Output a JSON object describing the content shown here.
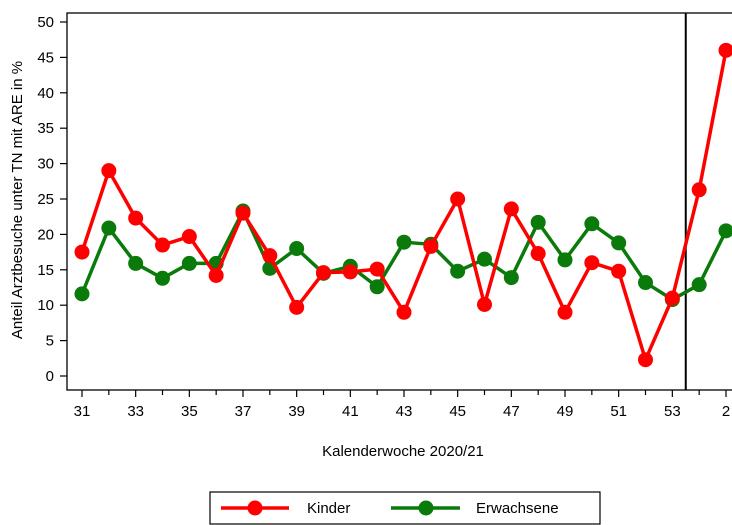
{
  "chart_data": {
    "type": "line",
    "xlabel": "Kalenderwoche 2020/21",
    "ylabel": "Anteil Arztbesuche unter TN mit ARE in %",
    "ylim": [
      0,
      50
    ],
    "y_ticks": [
      0,
      5,
      10,
      15,
      20,
      25,
      30,
      35,
      40,
      45,
      50
    ],
    "categories": [
      "31",
      "32",
      "33",
      "34",
      "35",
      "36",
      "37",
      "38",
      "39",
      "40",
      "41",
      "42",
      "43",
      "44",
      "45",
      "46",
      "47",
      "48",
      "49",
      "50",
      "51",
      "52",
      "53",
      "1",
      "2"
    ],
    "x_tick_labels": [
      "31",
      "33",
      "35",
      "37",
      "39",
      "41",
      "43",
      "45",
      "47",
      "49",
      "51",
      "53",
      "2"
    ],
    "vertical_line_after_category": "53",
    "grid": false,
    "legend_position": "bottom",
    "series": [
      {
        "name": "Kinder",
        "color": "#ff0000",
        "values": [
          17.5,
          29.0,
          22.3,
          18.5,
          19.7,
          14.2,
          23.0,
          17.0,
          9.7,
          14.6,
          14.7,
          15.1,
          9.0,
          18.3,
          25.0,
          10.1,
          23.6,
          17.3,
          9.0,
          16.0,
          14.8,
          2.3,
          11.0,
          26.3,
          46.0
        ]
      },
      {
        "name": "Erwachsene",
        "color": "#0a7a0a",
        "values": [
          11.6,
          20.9,
          15.9,
          13.8,
          15.9,
          15.9,
          23.3,
          15.2,
          18.0,
          14.5,
          15.5,
          12.6,
          18.9,
          18.6,
          14.8,
          16.5,
          13.9,
          21.7,
          16.4,
          21.5,
          18.8,
          13.2,
          10.8,
          12.9,
          20.5
        ]
      }
    ]
  }
}
